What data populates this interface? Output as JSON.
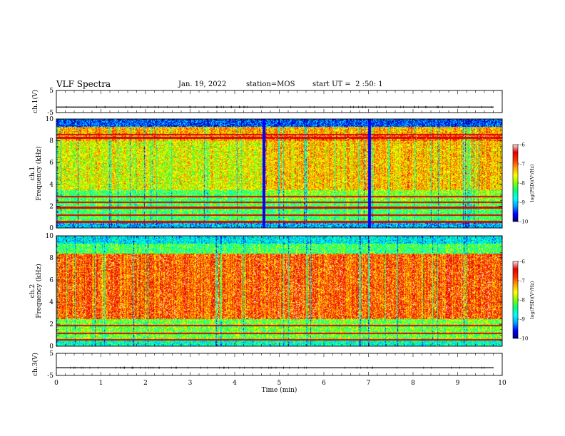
{
  "header": {
    "title": "VLF Spectra",
    "date": "Jan. 19, 2022",
    "station": "station=MOS",
    "start": "start UT =  2 :50: 1"
  },
  "chart_data": {
    "type": "heatmap",
    "x": {
      "label": "Time (min)",
      "range": [
        0,
        10
      ],
      "major_ticks": [
        0,
        1,
        2,
        3,
        4,
        5,
        6,
        7,
        8,
        9,
        10
      ]
    },
    "panels": [
      {
        "id": "ch1v",
        "kind": "line",
        "ylabel": "ch.1(V)",
        "yrange": [
          -5,
          5
        ],
        "yticks": [
          "5",
          "-5"
        ],
        "baseline": -2.5
      },
      {
        "id": "ch1",
        "kind": "spectrogram",
        "ylabel": [
          "ch.1",
          "Frequency (kHz)"
        ],
        "yrange": [
          0,
          10
        ],
        "yticks": [
          "0",
          "2",
          "4",
          "6",
          "8",
          "10"
        ],
        "lines_khz": [
          0.6,
          1.2,
          1.9,
          2.4,
          2.9,
          8.3,
          8.6
        ],
        "change_points_min": [
          4.65,
          7.02
        ],
        "colorbar": {
          "label": "log(PSD)(V²/Hz)",
          "range": [
            -10,
            -6
          ],
          "ticks": [
            "-6",
            "-7",
            "-8",
            "-9",
            "-10"
          ]
        }
      },
      {
        "id": "ch2",
        "kind": "spectrogram",
        "ylabel": [
          "ch.2",
          "Frequency (kHz)"
        ],
        "yrange": [
          0,
          10
        ],
        "yticks": [
          "0",
          "2",
          "4",
          "6",
          "8",
          "10"
        ],
        "lines_khz": [
          0.6,
          1.2,
          1.9
        ],
        "colorbar": {
          "label": "log(PSD)(V²/Hz)",
          "range": [
            -10,
            -6
          ],
          "ticks": [
            "-6",
            "-7",
            "-8",
            "-9",
            "-10"
          ]
        }
      },
      {
        "id": "ch3v",
        "kind": "line",
        "ylabel": "ch.3(V)",
        "yrange": [
          -5,
          5
        ],
        "yticks": [
          "5",
          "-5"
        ],
        "baseline": -1.5
      }
    ],
    "colormap": [
      "#000080",
      "#0000ff",
      "#00a0ff",
      "#00ffff",
      "#00ff80",
      "#80ff00",
      "#ffff00",
      "#ffa000",
      "#ff3000",
      "#e00000",
      "#ffe0e0"
    ]
  }
}
